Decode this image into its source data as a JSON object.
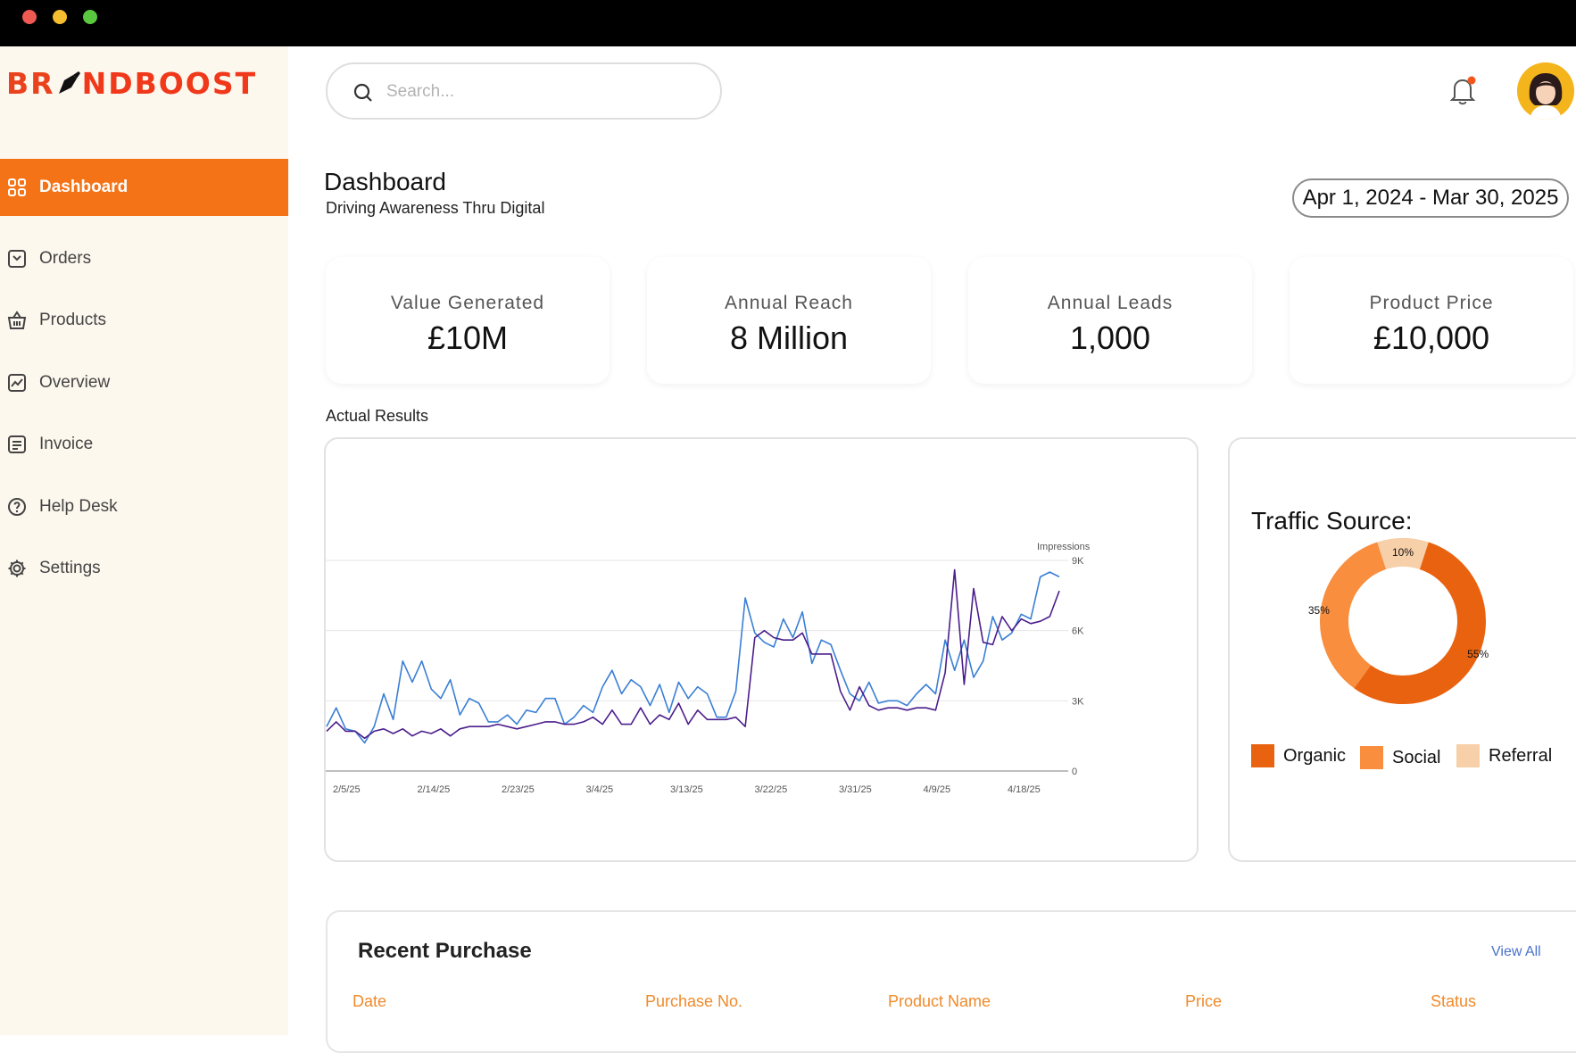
{
  "window": {
    "controls": [
      "close",
      "minimize",
      "maximize"
    ]
  },
  "brand": {
    "part1": "BR",
    "part2": "NDBOOST",
    "icon": "pen-icon"
  },
  "sidebar": {
    "items": [
      {
        "label": "Dashboard",
        "icon": "grid-icon",
        "active": true
      },
      {
        "label": "Orders",
        "icon": "orders-icon"
      },
      {
        "label": "Products",
        "icon": "basket-icon"
      },
      {
        "label": "Overview",
        "icon": "trend-icon"
      },
      {
        "label": "Invoice",
        "icon": "invoice-icon"
      },
      {
        "label": "Help Desk",
        "icon": "help-icon"
      },
      {
        "label": "Settings",
        "icon": "gear-icon"
      }
    ]
  },
  "search": {
    "placeholder": "Search..."
  },
  "header": {
    "title": "Dashboard",
    "subtitle": "Driving Awareness Thru Digital",
    "date_range": "Apr 1, 2024 - Mar 30, 2025"
  },
  "kpis": [
    {
      "label": "Value Generated",
      "value": "£10M",
      "bg": "#eef2fc"
    },
    {
      "label": "Annual Reach",
      "value": "8 Million",
      "bg": "#fbf6ea"
    },
    {
      "label": "Annual Leads",
      "value": "1,000",
      "bg": "#fcf3f0"
    },
    {
      "label": "Product Price",
      "value": "£10,000",
      "bg": "#eaf2fc"
    }
  ],
  "actual_results_label": "Actual Results",
  "traffic": {
    "title": "Traffic Source:",
    "legend": [
      {
        "label": "Organic",
        "color": "#e8620f"
      },
      {
        "label": "Social",
        "color": "#f88e3e"
      },
      {
        "label": "Referral",
        "color": "#f7cfa8"
      }
    ]
  },
  "recent_purchase": {
    "title": "Recent Purchase",
    "view_all": "View All",
    "columns": [
      "Date",
      "Purchase No.",
      "Product Name",
      "Price",
      "Status"
    ]
  },
  "chart_data": [
    {
      "type": "line",
      "ylabel": "Impressions",
      "ylim": [
        0,
        9000
      ],
      "yticks": [
        "0",
        "3K",
        "6K",
        "9K"
      ],
      "ytick_values": [
        0,
        3000,
        6000,
        9000
      ],
      "x_labels": [
        "2/5/25",
        "2/14/25",
        "2/23/25",
        "3/4/25",
        "3/13/25",
        "3/22/25",
        "3/31/25",
        "4/9/25",
        "4/18/25"
      ],
      "colors": [
        "#3a7fd5",
        "#4b1e8c"
      ],
      "grid": true,
      "series": [
        {
          "values": [
            1900,
            2700,
            1800,
            1700,
            1200,
            1900,
            3300,
            2200,
            4700,
            3800,
            4700,
            3500,
            3100,
            3900,
            2400,
            3100,
            2900,
            2100,
            2100,
            2400,
            2000,
            2600,
            2500,
            3100,
            3100,
            2000,
            2300,
            2800,
            2500,
            3600,
            4300,
            3300,
            3900,
            3600,
            2800,
            3700,
            2500,
            3800,
            3100,
            3600,
            3300,
            2300,
            2300,
            3400,
            7400,
            5900,
            5500,
            5300,
            6500,
            5700,
            6800,
            4600,
            5600,
            5400,
            4300,
            3300,
            3000,
            3800,
            2900,
            3000,
            3000,
            2800,
            3300,
            3700,
            3300,
            5600,
            4300,
            5600,
            4000,
            4700,
            6600,
            5600,
            5900,
            6700,
            6500,
            8300,
            8500,
            8300
          ]
        },
        {
          "values": [
            1700,
            2100,
            1700,
            1700,
            1400,
            1700,
            1800,
            1600,
            1800,
            1500,
            1700,
            1600,
            1800,
            1500,
            1800,
            1900,
            1900,
            1900,
            2000,
            1900,
            1800,
            1900,
            2000,
            2100,
            2100,
            2000,
            2000,
            2100,
            2300,
            2000,
            2600,
            2000,
            2000,
            2700,
            2000,
            2400,
            2200,
            2900,
            2000,
            2600,
            2200,
            2200,
            2200,
            2300,
            1900,
            5700,
            6000,
            5700,
            5600,
            5600,
            5900,
            5000,
            5000,
            5000,
            3400,
            2600,
            3600,
            2800,
            2600,
            2700,
            2700,
            2600,
            2700,
            2700,
            2600,
            4200,
            8600,
            3700,
            7800,
            5500,
            5400,
            6600,
            6000,
            6500,
            6300,
            6400,
            6600,
            7700
          ]
        }
      ]
    },
    {
      "type": "pie",
      "title": "Traffic Source:",
      "categories": [
        "Organic",
        "Social",
        "Referral"
      ],
      "values": [
        55,
        35,
        10
      ],
      "labels": [
        "55%",
        "35%",
        "10%"
      ],
      "colors": [
        "#e8620f",
        "#f88e3e",
        "#f7cfa8"
      ]
    }
  ]
}
